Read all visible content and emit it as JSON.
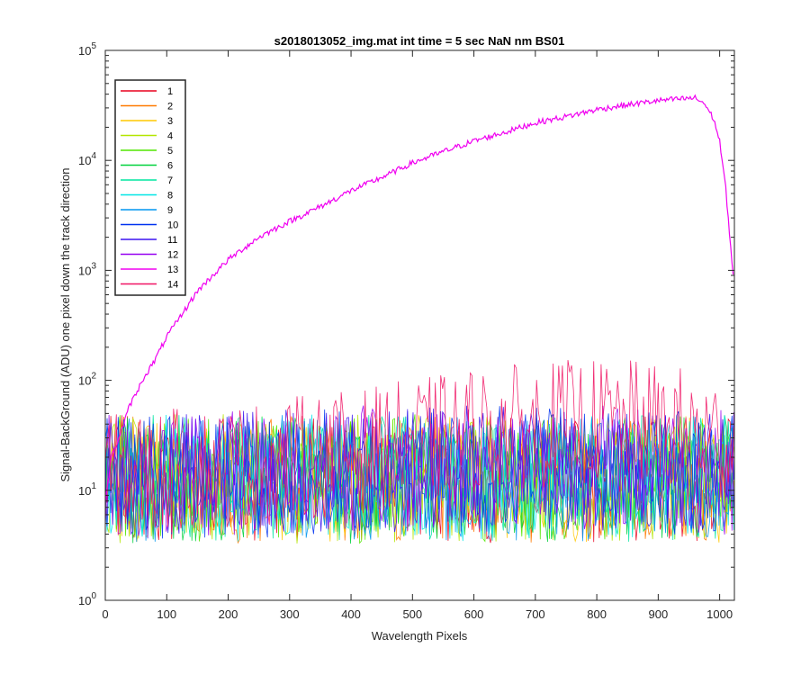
{
  "chart_data": {
    "type": "line",
    "title": "s2018013052_img.mat int time = 5 sec  NaN nm BS01",
    "xlabel": "Wavelength Pixels",
    "ylabel": "Signal-BackGround (ADU) one pixel down the track direction",
    "xlim": [
      0,
      1024
    ],
    "ylim": [
      1,
      100000
    ],
    "yscale": "log",
    "grid": false,
    "legend_location": "top-left",
    "x_ticks": [
      0,
      100,
      200,
      300,
      400,
      500,
      600,
      700,
      800,
      900,
      1000
    ],
    "y_ticks": [
      {
        "value": 1,
        "base": "10",
        "exp": "0"
      },
      {
        "value": 10,
        "base": "10",
        "exp": "1"
      },
      {
        "value": 100,
        "base": "10",
        "exp": "2"
      },
      {
        "value": 1000,
        "base": "10",
        "exp": "3"
      },
      {
        "value": 10000,
        "base": "10",
        "exp": "4"
      },
      {
        "value": 100000,
        "base": "10",
        "exp": "5"
      }
    ],
    "series": [
      {
        "name": "1",
        "color": "#e8001e",
        "x": [
          0,
          100,
          200,
          300,
          400,
          500,
          600,
          700,
          800,
          900,
          1000,
          1023
        ],
        "y": [
          15,
          14,
          15,
          15,
          14,
          15,
          14,
          15,
          14,
          15,
          14,
          14
        ]
      },
      {
        "name": "2",
        "color": "#ff7a00",
        "x": [
          0,
          100,
          200,
          300,
          400,
          500,
          600,
          700,
          800,
          900,
          1000,
          1023
        ],
        "y": [
          14,
          15,
          14,
          15,
          15,
          14,
          15,
          14,
          15,
          14,
          15,
          14
        ]
      },
      {
        "name": "3",
        "color": "#ffc800",
        "x": [
          0,
          100,
          200,
          300,
          400,
          500,
          600,
          700,
          800,
          900,
          1000,
          1023
        ],
        "y": [
          15,
          14,
          15,
          14,
          15,
          15,
          14,
          15,
          14,
          15,
          14,
          15
        ]
      },
      {
        "name": "4",
        "color": "#b4e600",
        "x": [
          0,
          100,
          200,
          300,
          400,
          500,
          600,
          700,
          800,
          900,
          1000,
          1023
        ],
        "y": [
          14,
          15,
          15,
          14,
          15,
          14,
          15,
          14,
          15,
          14,
          15,
          14
        ]
      },
      {
        "name": "5",
        "color": "#50e600",
        "x": [
          0,
          100,
          200,
          300,
          400,
          500,
          600,
          700,
          800,
          900,
          1000,
          1023
        ],
        "y": [
          15,
          15,
          14,
          15,
          14,
          15,
          14,
          15,
          14,
          15,
          14,
          15
        ]
      },
      {
        "name": "6",
        "color": "#00d23c",
        "x": [
          0,
          100,
          200,
          300,
          400,
          500,
          600,
          700,
          800,
          900,
          1000,
          1023
        ],
        "y": [
          14,
          14,
          15,
          15,
          14,
          15,
          15,
          14,
          15,
          14,
          15,
          14
        ]
      },
      {
        "name": "7",
        "color": "#00e6a0",
        "x": [
          0,
          100,
          200,
          300,
          400,
          500,
          600,
          700,
          800,
          900,
          1000,
          1023
        ],
        "y": [
          15,
          15,
          15,
          14,
          15,
          14,
          15,
          15,
          14,
          15,
          14,
          15
        ]
      },
      {
        "name": "8",
        "color": "#00e6e6",
        "x": [
          0,
          100,
          200,
          300,
          400,
          500,
          600,
          700,
          800,
          900,
          1000,
          1023
        ],
        "y": [
          14,
          15,
          14,
          15,
          15,
          15,
          14,
          15,
          15,
          14,
          15,
          14
        ]
      },
      {
        "name": "9",
        "color": "#0096f0",
        "x": [
          0,
          100,
          200,
          300,
          400,
          500,
          600,
          700,
          800,
          900,
          1000,
          1023
        ],
        "y": [
          15,
          14,
          15,
          15,
          14,
          15,
          15,
          14,
          15,
          15,
          14,
          15
        ]
      },
      {
        "name": "10",
        "color": "#0032f0",
        "x": [
          0,
          100,
          200,
          300,
          400,
          500,
          600,
          700,
          800,
          900,
          1000,
          1023
        ],
        "y": [
          15,
          15,
          16,
          16,
          17,
          17,
          18,
          18,
          18,
          17,
          17,
          16
        ]
      },
      {
        "name": "11",
        "color": "#3c14f0",
        "x": [
          0,
          100,
          200,
          300,
          400,
          500,
          600,
          700,
          800,
          900,
          1000,
          1023
        ],
        "y": [
          15,
          15,
          16,
          17,
          17,
          18,
          18,
          19,
          18,
          18,
          17,
          16
        ]
      },
      {
        "name": "12",
        "color": "#9600f0",
        "x": [
          0,
          100,
          200,
          300,
          400,
          500,
          600,
          700,
          800,
          900,
          1000,
          1023
        ],
        "y": [
          15,
          16,
          16,
          17,
          18,
          18,
          19,
          19,
          19,
          18,
          17,
          17
        ]
      },
      {
        "name": "13",
        "color": "#f000f0",
        "x": [
          0,
          10,
          20,
          30,
          40,
          50,
          60,
          80,
          100,
          125,
          150,
          175,
          200,
          250,
          300,
          350,
          400,
          450,
          500,
          550,
          600,
          650,
          700,
          750,
          800,
          850,
          900,
          930,
          960,
          975,
          990,
          1000,
          1010,
          1020,
          1023
        ],
        "y": [
          8,
          20,
          28,
          40,
          60,
          75,
          100,
          150,
          250,
          400,
          650,
          900,
          1250,
          2000,
          2800,
          3800,
          5300,
          7000,
          9500,
          12000,
          15000,
          18000,
          22000,
          25000,
          29000,
          32000,
          35000,
          36000,
          37000,
          33000,
          24000,
          15000,
          5500,
          1200,
          800
        ]
      },
      {
        "name": "14",
        "color": "#f01464",
        "x": [
          0,
          50,
          100,
          150,
          200,
          250,
          300,
          350,
          400,
          450,
          500,
          550,
          600,
          650,
          700,
          750,
          800,
          850,
          900,
          950,
          1000,
          1023
        ],
        "y": [
          15,
          16,
          17,
          18,
          19,
          20,
          22,
          24,
          25,
          28,
          32,
          35,
          40,
          42,
          45,
          47,
          48,
          47,
          44,
          40,
          32,
          28
        ]
      }
    ]
  }
}
